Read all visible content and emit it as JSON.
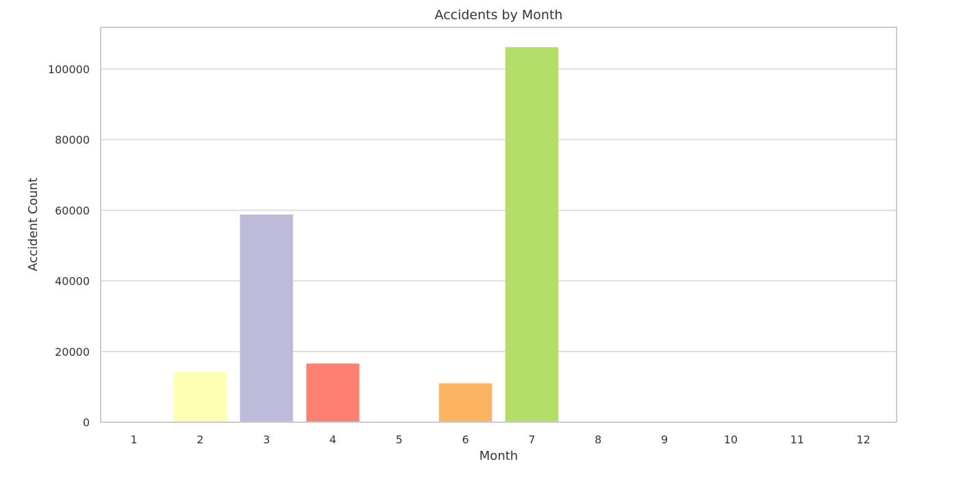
{
  "chart_data": {
    "type": "bar",
    "title": "Accidents by Month",
    "xlabel": "Month",
    "ylabel": "Accident Count",
    "categories": [
      "1",
      "2",
      "3",
      "4",
      "5",
      "6",
      "7",
      "8",
      "9",
      "10",
      "11",
      "12"
    ],
    "values": [
      150,
      14200,
      58800,
      16600,
      120,
      11000,
      106200,
      0,
      0,
      0,
      0,
      0
    ],
    "colors": [
      "#8dd3c7",
      "#ffffb3",
      "#bebada",
      "#fb8072",
      "#80b1d3",
      "#fdb462",
      "#b3de69",
      "#fccde5",
      "#d9d9d9",
      "#bc80bd",
      "#ccebc5",
      "#ffed6f"
    ],
    "ylim": [
      0,
      111800
    ],
    "yticks": [
      0,
      20000,
      40000,
      60000,
      80000,
      100000
    ],
    "ytick_labels": [
      "0",
      "20000",
      "40000",
      "60000",
      "80000",
      "100000"
    ],
    "grid": true,
    "grid_axis": "y",
    "legend": "none"
  }
}
